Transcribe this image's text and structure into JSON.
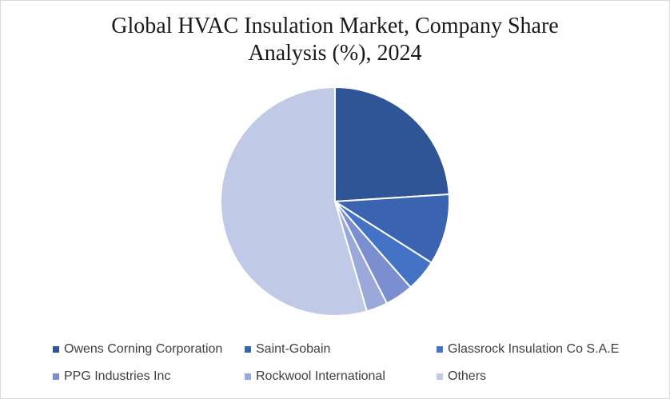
{
  "chart_data": {
    "type": "pie",
    "title_line1": "Global HVAC Insulation Market, Company Share",
    "title_line2": "Analysis (%), 2024",
    "legend_position": "bottom",
    "series": [
      {
        "name": "Owens Corning Corporation",
        "value": 24,
        "color": "#2f5597"
      },
      {
        "name": "Saint-Gobain",
        "value": 10,
        "color": "#3a63b0"
      },
      {
        "name": "Glassrock Insulation Co S.A.E",
        "value": 4.5,
        "color": "#4472c4"
      },
      {
        "name": "PPG Industries Inc",
        "value": 4,
        "color": "#7b8fd0"
      },
      {
        "name": "Rockwool International",
        "value": 3,
        "color": "#9aa9da"
      },
      {
        "name": "Others",
        "value": 54.5,
        "color": "#c0cae6"
      }
    ]
  }
}
